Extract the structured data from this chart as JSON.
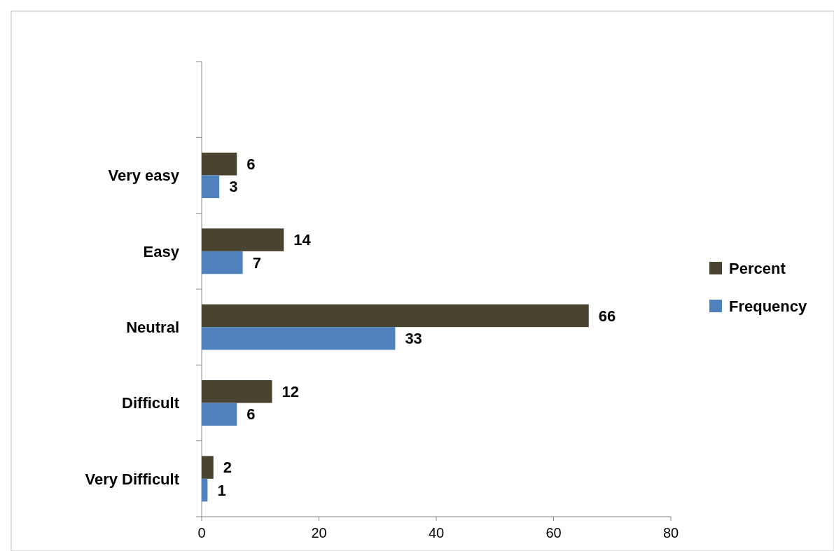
{
  "chart_data": {
    "type": "bar",
    "orientation": "horizontal",
    "categories": [
      null,
      "Very easy",
      "Easy",
      "Neutral",
      "Difficult",
      "Very Difficult"
    ],
    "series": [
      {
        "name": "Percent",
        "color": "#4a4330",
        "values": [
          null,
          6,
          14,
          66,
          12,
          2
        ]
      },
      {
        "name": "Frequency",
        "color": "#4f81bd",
        "values": [
          null,
          3,
          7,
          33,
          6,
          1
        ]
      }
    ],
    "xlim": [
      0,
      80
    ],
    "xticks": [
      0,
      20,
      40,
      60,
      80
    ],
    "grid": false,
    "legend": "right",
    "data_labels": true
  }
}
